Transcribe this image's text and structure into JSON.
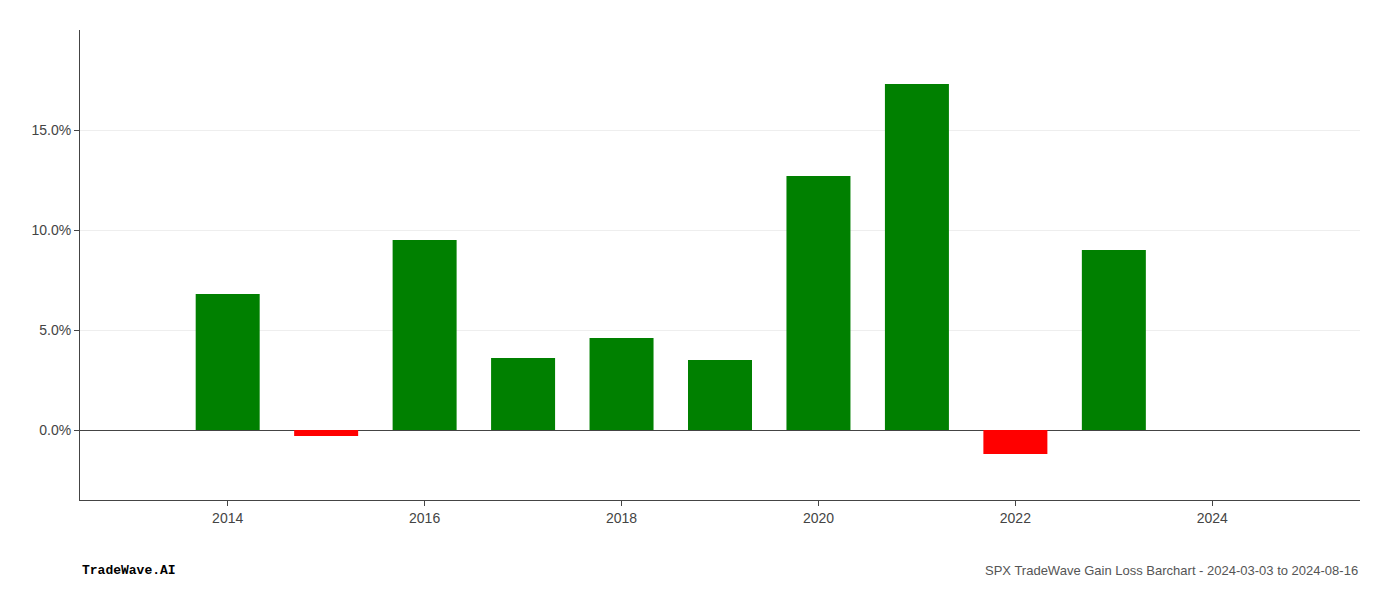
{
  "chart_data": {
    "type": "bar",
    "x": [
      2014,
      2015,
      2016,
      2017,
      2018,
      2019,
      2020,
      2021,
      2022,
      2023
    ],
    "values": [
      0.068,
      -0.003,
      0.095,
      0.036,
      0.046,
      0.035,
      0.127,
      0.173,
      -0.012,
      0.09
    ],
    "colors": [
      "#008000",
      "#ff0000",
      "#008000",
      "#008000",
      "#008000",
      "#008000",
      "#008000",
      "#008000",
      "#ff0000",
      "#008000"
    ],
    "xlim": [
      2012.5,
      2025.5
    ],
    "xticks": [
      2014,
      2016,
      2018,
      2020,
      2022,
      2024
    ],
    "ylim": [
      -0.035,
      0.2
    ],
    "yticks": [
      {
        "value": 0.0,
        "label": "0.0%"
      },
      {
        "value": 0.05,
        "label": "5.0%"
      },
      {
        "value": 0.1,
        "label": "10.0%"
      },
      {
        "value": 0.15,
        "label": "15.0%"
      }
    ],
    "grid": true,
    "annotations": [
      "TradeWave.AI",
      "SPX TradeWave Gain Loss Barchart - 2024-03-03 to 2024-08-16"
    ]
  }
}
